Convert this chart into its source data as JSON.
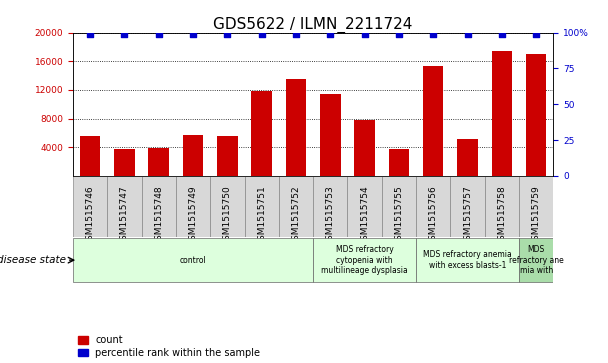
{
  "title": "GDS5622 / ILMN_2211724",
  "samples": [
    "GSM1515746",
    "GSM1515747",
    "GSM1515748",
    "GSM1515749",
    "GSM1515750",
    "GSM1515751",
    "GSM1515752",
    "GSM1515753",
    "GSM1515754",
    "GSM1515755",
    "GSM1515756",
    "GSM1515757",
    "GSM1515758",
    "GSM1515759"
  ],
  "counts": [
    5500,
    3800,
    3900,
    5700,
    5600,
    11800,
    13500,
    11400,
    7800,
    3800,
    15400,
    5200,
    17500,
    17000
  ],
  "percentile_ranks": [
    99,
    99,
    99,
    99,
    99,
    99,
    99,
    99,
    99,
    99,
    99,
    99,
    99,
    99
  ],
  "bar_color": "#cc0000",
  "dot_color": "#0000cc",
  "ylim_left": [
    0,
    20000
  ],
  "ylim_right": [
    0,
    100
  ],
  "yticks_left": [
    4000,
    8000,
    12000,
    16000,
    20000
  ],
  "yticks_right": [
    0,
    25,
    50,
    75,
    100
  ],
  "disease_groups": [
    {
      "label": "control",
      "start": 0,
      "end": 7,
      "color": "#ddffdd"
    },
    {
      "label": "MDS refractory\ncytopenia with\nmultilineage dysplasia",
      "start": 7,
      "end": 10,
      "color": "#ddffdd"
    },
    {
      "label": "MDS refractory anemia\nwith excess blasts-1",
      "start": 10,
      "end": 13,
      "color": "#ddffdd"
    },
    {
      "label": "MDS\nrefractory ane\nmia with",
      "start": 13,
      "end": 14,
      "color": "#aaddaa"
    }
  ],
  "disease_state_label": "disease state",
  "legend_count_label": "count",
  "legend_percentile_label": "percentile rank within the sample",
  "title_fontsize": 11,
  "tick_fontsize": 6.5,
  "label_fontsize": 8,
  "sample_box_color": "#d8d8d8",
  "bar_width": 0.6
}
